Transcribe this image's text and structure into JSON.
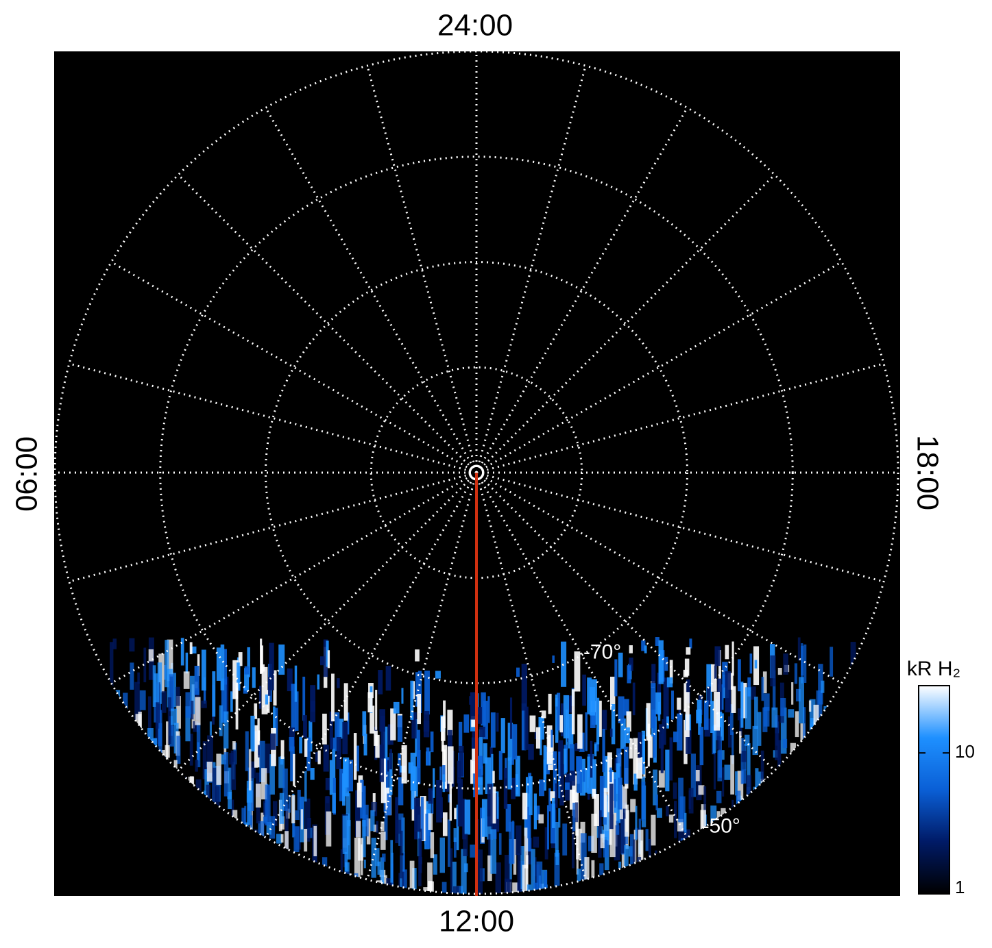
{
  "chart_data": {
    "type": "polar-image",
    "direction_labels": {
      "top": "24:00",
      "bottom": "12:00",
      "left": "06:00",
      "right": "18:00"
    },
    "rlim": [
      -90,
      -50
    ],
    "rticks": [
      -80,
      {
        "value": -70,
        "label": "-70°"
      },
      -60,
      {
        "value": -50,
        "label": "-50°"
      }
    ],
    "grid": true,
    "colorbar": {
      "title": "kR H₂",
      "log": true,
      "lim": [
        1,
        30
      ],
      "ticks": [
        1,
        10
      ],
      "colors": [
        "#000000",
        "#001a66",
        "#0a5fd6",
        "#1e90ff",
        "#ffffff"
      ]
    },
    "noon_line_color": "#d03010"
  }
}
